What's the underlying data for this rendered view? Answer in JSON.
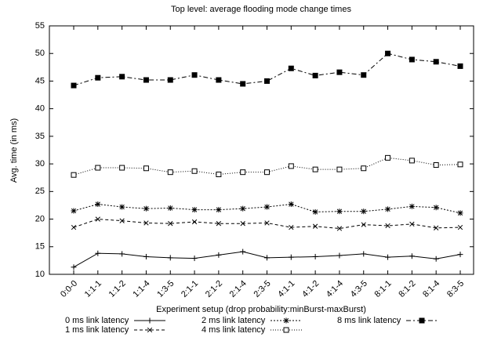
{
  "chart_data": {
    "type": "line",
    "title": "Top level: average flooding mode change times",
    "x_label": "Experiment setup (drop probability:minBurst-maxBurst)",
    "y_label": "Avg. time (in ms)",
    "categories": [
      "0:0-0",
      "1:1-1",
      "1:1-2",
      "1:1-4",
      "1:3-5",
      "2:1-1",
      "2:1-2",
      "2:1-4",
      "2:3-5",
      "4:1-1",
      "4:1-2",
      "4:1-4",
      "4:3-5",
      "8:1-1",
      "8:1-2",
      "8:1-4",
      "8:3-5"
    ],
    "ylim": [
      10,
      55
    ],
    "yticks": [
      10,
      15,
      20,
      25,
      30,
      35,
      40,
      45,
      50,
      55
    ],
    "grid": false,
    "series": [
      {
        "name": "0 ms link latency",
        "color": "#000000",
        "marker": "plus",
        "dash": "none",
        "values": [
          11.3,
          13.8,
          13.7,
          13.2,
          13.0,
          12.9,
          13.5,
          14.1,
          13.0,
          13.1,
          13.2,
          13.4,
          13.7,
          13.1,
          13.3,
          12.8,
          13.6
        ]
      },
      {
        "name": "1 ms link latency",
        "color": "#000000",
        "marker": "x",
        "dash": "4,3",
        "values": [
          18.5,
          20.0,
          19.7,
          19.3,
          19.2,
          19.5,
          19.2,
          19.2,
          19.3,
          18.5,
          18.7,
          18.3,
          19.0,
          18.8,
          19.1,
          18.4,
          18.5
        ]
      },
      {
        "name": "2 ms link latency",
        "color": "#000000",
        "marker": "asterisk",
        "dash": "2,2",
        "values": [
          21.5,
          22.7,
          22.2,
          21.9,
          22.0,
          21.7,
          21.7,
          21.9,
          22.2,
          22.7,
          21.3,
          21.4,
          21.4,
          21.8,
          22.3,
          22.1,
          21.1
        ]
      },
      {
        "name": "4 ms link latency",
        "color": "#000000",
        "marker": "open-square",
        "dash": "1,2",
        "values": [
          28.0,
          29.3,
          29.3,
          29.2,
          28.5,
          28.7,
          28.1,
          28.5,
          28.5,
          29.6,
          29.0,
          29.0,
          29.2,
          31.1,
          30.6,
          29.8,
          29.9
        ]
      },
      {
        "name": "8 ms link latency",
        "color": "#000000",
        "marker": "filled-square",
        "dash": "6,3,2,3",
        "values": [
          44.2,
          45.6,
          45.8,
          45.2,
          45.2,
          46.1,
          45.2,
          44.5,
          45.0,
          47.3,
          46.0,
          46.6,
          46.1,
          50.0,
          48.9,
          48.5,
          47.7
        ]
      }
    ]
  }
}
